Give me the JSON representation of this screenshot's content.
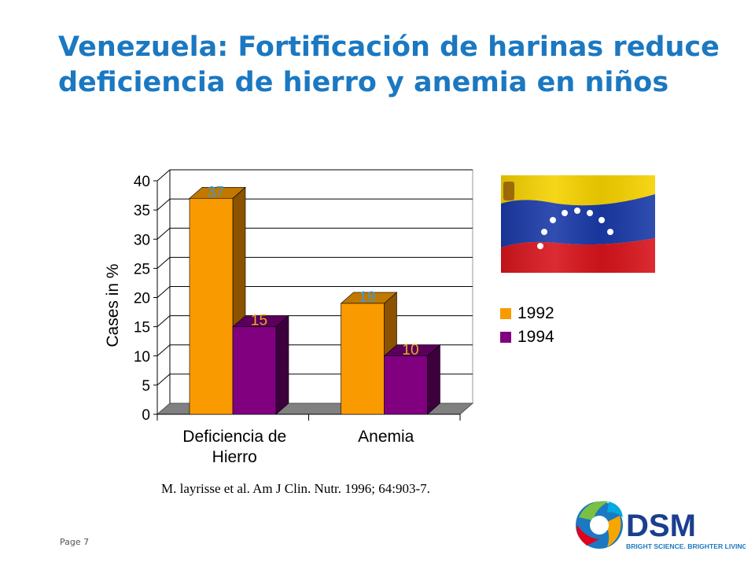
{
  "slide": {
    "title_line1": "Venezuela: Fortificación de harinas reduce",
    "title_line2": "deficiencia de hierro y anemia en niños",
    "citation": "M. layrisse et al. Am J Clin. Nutr. 1996; 64:903-7.",
    "page_label": "Page 7",
    "logo_text": "DSM",
    "logo_tagline": "BRIGHT SCIENCE. BRIGHTER LIVING.",
    "flag_icon": "venezuela-flag-icon"
  },
  "colors": {
    "title": "#1b78c1",
    "series_1992": "#f89a00",
    "series_1994": "#800080",
    "label_1992": "#3a9ad9",
    "label_1994": "#f5a623"
  },
  "chart_data": {
    "type": "bar",
    "categories": [
      "Deficiencia de Hierro",
      "Anemia"
    ],
    "category_lines": [
      [
        "Deficiencia de",
        "Hierro"
      ],
      [
        "Anemia"
      ]
    ],
    "series": [
      {
        "name": "1992",
        "values": [
          37,
          19
        ]
      },
      {
        "name": "1994",
        "values": [
          15,
          10
        ]
      }
    ],
    "ylabel": "Cases in %",
    "ylim": [
      0,
      40
    ],
    "yticks": [
      0,
      5,
      10,
      15,
      20,
      25,
      30,
      35,
      40
    ],
    "grid": true,
    "legend": "right",
    "data_labels": true
  }
}
